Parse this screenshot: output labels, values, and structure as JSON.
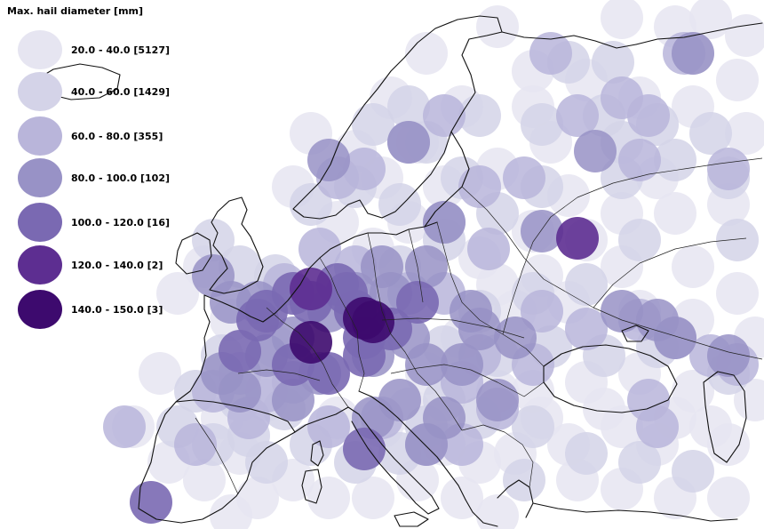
{
  "legend": {
    "title": "Max. hail diameter [mm]",
    "classes": [
      {
        "label": "20.0 - 40.0  [5127]",
        "color": "#e6e5f1"
      },
      {
        "label": "40.0 - 60.0  [1429]",
        "color": "#d4d3e8"
      },
      {
        "label": "60.0 - 80.0  [355]",
        "color": "#b9b5da"
      },
      {
        "label": "80.0 - 100.0  [102]",
        "color": "#9892c6"
      },
      {
        "label": "100.0 - 120.0  [16]",
        "color": "#7a69b2"
      },
      {
        "label": "120.0 - 140.0  [2]",
        "color": "#5d2e91"
      },
      {
        "label": "140.0 - 150.0  [3]",
        "color": "#3d0a6e"
      }
    ]
  },
  "colors": {
    "background": "#ffffff",
    "coastline": "#111111"
  }
}
